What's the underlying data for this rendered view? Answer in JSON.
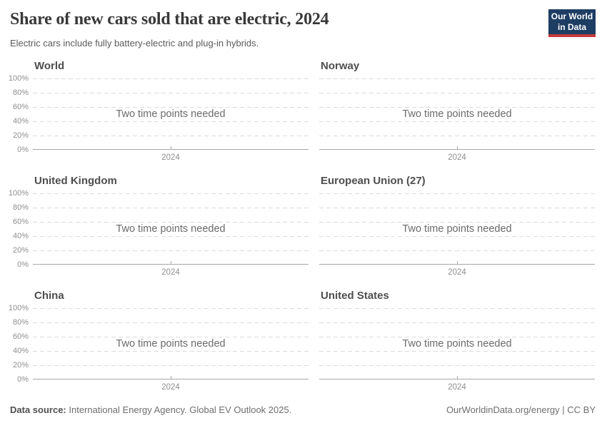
{
  "header": {
    "title": "Share of new cars sold that are electric, 2024",
    "subtitle": "Electric cars include fully battery-electric and plug-in hybrids.",
    "logo": {
      "line1": "Our World",
      "line2": "in Data"
    }
  },
  "chart_data": {
    "type": "line",
    "layout": "small-multiples-grid-2-cols-3-rows",
    "title": "Share of new cars sold that are electric, 2024",
    "subtitle": "Electric cars include fully battery-electric and plug-in hybrids.",
    "panels": [
      {
        "title": "World",
        "message": "Two time points needed"
      },
      {
        "title": "Norway",
        "message": "Two time points needed"
      },
      {
        "title": "United Kingdom",
        "message": "Two time points needed"
      },
      {
        "title": "European Union (27)",
        "message": "Two time points needed"
      },
      {
        "title": "China",
        "message": "Two time points needed"
      },
      {
        "title": "United States",
        "message": "Two time points needed"
      }
    ],
    "series": [],
    "note": "No data series plotted; every panel shows the placeholder message instead of a line",
    "x_ticks": [
      "2024"
    ],
    "y_ticks": [
      "100%",
      "80%",
      "60%",
      "40%",
      "20%",
      "0%"
    ],
    "ylim": [
      0,
      100
    ],
    "grid": "dashed horizontal gridlines every 20%, solid baseline at 0%",
    "legend": "none",
    "y_labels_on": "left column panels only"
  },
  "footer": {
    "source_label": "Data source:",
    "source_text": " International Energy Agency. Global EV Outlook 2025.",
    "link_text": "OurWorldinData.org/energy | CC BY"
  },
  "colors": {
    "background": "#ffffff",
    "title": "#383838",
    "subtitle": "#5b5b5b",
    "panel_title": "#4e4e4e",
    "tick_label": "#8f8f8f",
    "gridline": "#dcdcdc",
    "axis_line": "#a6a6a6",
    "message": "#6b6b6b",
    "footer_text": "#6f6f6f",
    "logo_background": "#1d3d63",
    "logo_bar": "#c5393c"
  }
}
